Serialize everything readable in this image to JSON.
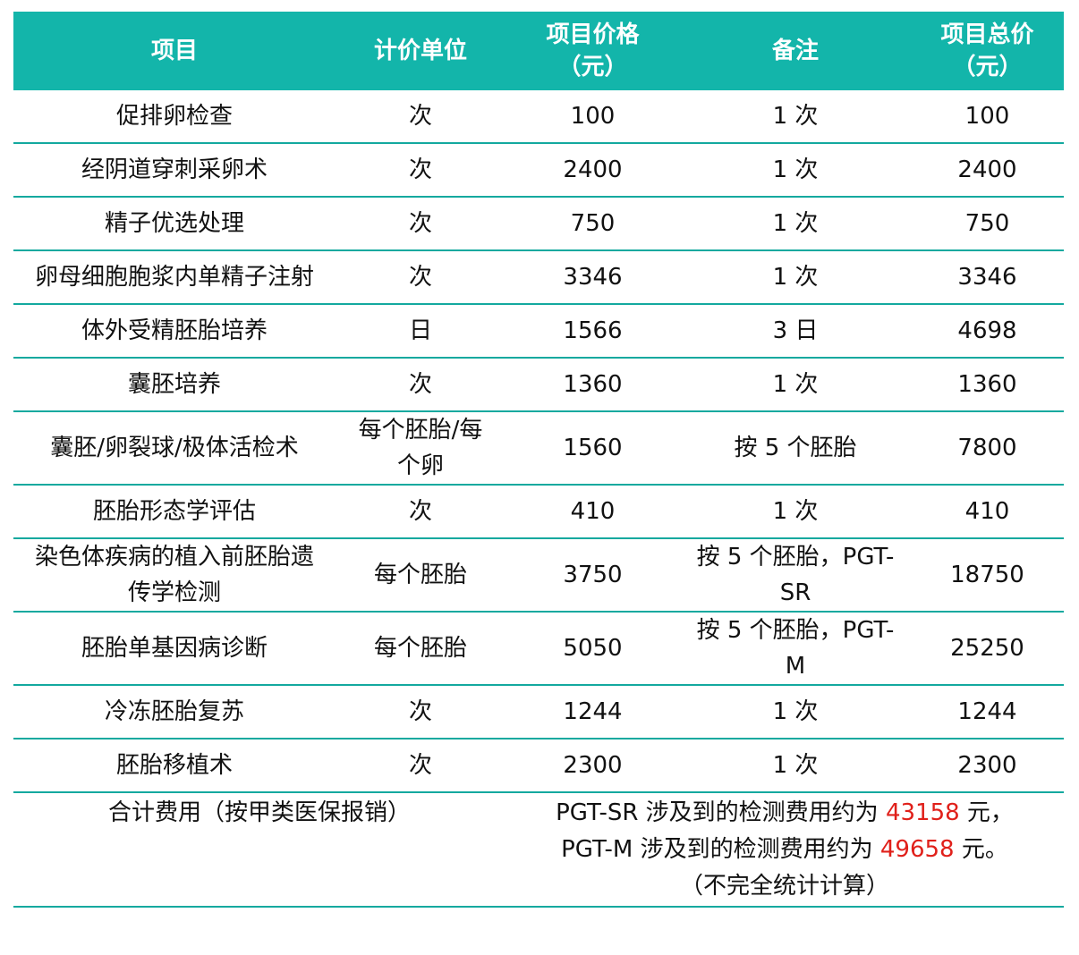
{
  "table": {
    "header": [
      "项目",
      "计价单位",
      "项目价格（元）",
      "备注",
      "项目总价（元）"
    ],
    "rows": [
      [
        "促排卵检查",
        "次",
        100,
        "1 次",
        100
      ],
      [
        "经阴道穿刺采卵术",
        "次",
        2400,
        "1 次",
        2400
      ],
      [
        "精子优选处理",
        "次",
        750,
        "1 次",
        750
      ],
      [
        "卵母细胞胞浆内单精子注射",
        "次",
        3346,
        "1 次",
        3346
      ],
      [
        "体外受精胚胎培养",
        "日",
        1566,
        "3 日",
        4698
      ],
      [
        "囊胚培养",
        "次",
        1360,
        "1 次",
        1360
      ],
      [
        "囊胚/卵裂球/极体活检术",
        "每个胚胎/每个卵",
        1560,
        "按 5 个胚胎",
        7800
      ],
      [
        "胚胎形态学评估",
        "次",
        410,
        "1 次",
        410
      ],
      [
        "染色体疾病的植入前胚胎遗传学检测",
        "每个胚胎",
        3750,
        "按 5 个胚胎，PGT-SR",
        18750
      ],
      [
        "胚胎单基因病诊断",
        "每个胚胎",
        5050,
        "按 5 个胚胎，PGT-M",
        25250
      ],
      [
        "冷冻胚胎复苏",
        "次",
        1244,
        "1 次",
        1244
      ],
      [
        "胚胎移植术",
        "次",
        2300,
        "1 次",
        2300
      ]
    ],
    "footer": {
      "label": "合计费用（按甲类医保报销）",
      "lines": [
        {
          "before": "PGT-SR 涉及到的检测费用约为 ",
          "amount": "43158",
          "after": " 元，"
        },
        {
          "before": "PGT-M 涉及到的检测费用约为 ",
          "amount": "49658",
          "after": " 元。"
        }
      ],
      "note": "（不完全统计计算）"
    }
  }
}
